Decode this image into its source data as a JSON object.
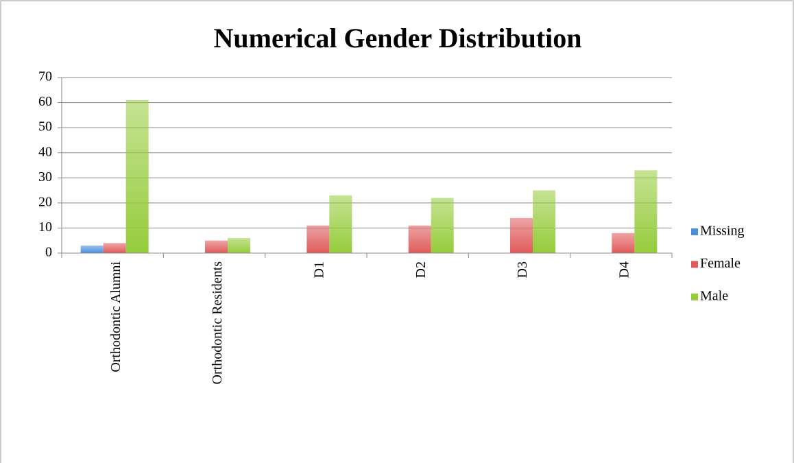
{
  "chart_data": {
    "type": "bar",
    "title": "Numerical Gender Distribution",
    "categories": [
      "Orthodontic Alumni",
      "Orthodontic Residents",
      "D1",
      "D2",
      "D3",
      "D4"
    ],
    "series": [
      {
        "name": "Missing",
        "color": "#4a8fdc",
        "values": [
          3,
          0,
          0,
          0,
          0,
          0
        ]
      },
      {
        "name": "Female",
        "color": "#e05a5a",
        "values": [
          4,
          5,
          11,
          11,
          14,
          8
        ]
      },
      {
        "name": "Male",
        "color": "#96cc3c",
        "values": [
          61,
          6,
          23,
          22,
          25,
          33
        ]
      }
    ],
    "ylim": [
      0,
      70
    ],
    "yticks": [
      0,
      10,
      20,
      30,
      40,
      50,
      60,
      70
    ],
    "grid": true,
    "legend": "right"
  }
}
